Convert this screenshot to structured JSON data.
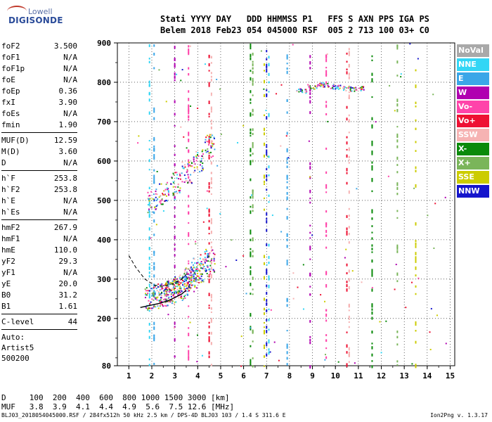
{
  "logo": {
    "line1": "Lowell",
    "line2": "DIGISONDE"
  },
  "header": {
    "row1": "Stati YYYY DAY   DDD HHMMSS P1   FFS S AXN PPS IGA PS",
    "row2": "Belem 2018 Feb23 054 045000 RSF  005 2 713 100 03+ C0"
  },
  "params": [
    {
      "name": "foF2",
      "value": "3.500"
    },
    {
      "name": "foF1",
      "value": "N/A"
    },
    {
      "name": "foF1p",
      "value": "N/A"
    },
    {
      "name": "foE",
      "value": "N/A"
    },
    {
      "name": "foEp",
      "value": "0.36"
    },
    {
      "name": "fxI",
      "value": "3.90"
    },
    {
      "name": "foEs",
      "value": "N/A"
    },
    {
      "name": "fmin",
      "value": "1.90"
    },
    {
      "sep": true
    },
    {
      "name": "MUF(D)",
      "value": "12.59"
    },
    {
      "name": "M(D)",
      "value": "3.60"
    },
    {
      "name": "D",
      "value": "N/A"
    },
    {
      "sep": true
    },
    {
      "name": "h`F",
      "value": "253.8"
    },
    {
      "name": "h`F2",
      "value": "253.8"
    },
    {
      "name": "h`E",
      "value": "N/A"
    },
    {
      "name": "h`Es",
      "value": "N/A"
    },
    {
      "sep": true
    },
    {
      "name": "hmF2",
      "value": "267.9"
    },
    {
      "name": "hmF1",
      "value": "N/A"
    },
    {
      "name": "hmE",
      "value": "110.0"
    },
    {
      "name": "yF2",
      "value": "29.3"
    },
    {
      "name": "yF1",
      "value": "N/A"
    },
    {
      "name": "yE",
      "value": "20.0"
    },
    {
      "name": "B0",
      "value": "31.2"
    },
    {
      "name": "B1",
      "value": "1.61"
    },
    {
      "sep": true
    },
    {
      "name": "C-level",
      "value": "44"
    },
    {
      "sep": true
    }
  ],
  "auto": [
    "Auto:",
    "Artist5",
    "500200"
  ],
  "legend": [
    {
      "label": "NoVal",
      "color": "#a9a9a9"
    },
    {
      "label": "NNE",
      "color": "#33d6f5"
    },
    {
      "label": "E",
      "color": "#3aa6e8"
    },
    {
      "label": "W",
      "color": "#b000b0"
    },
    {
      "label": "Vo-",
      "color": "#ff44aa"
    },
    {
      "label": "Vo+",
      "color": "#ee1133"
    },
    {
      "label": "SSW",
      "color": "#f6b3b3"
    },
    {
      "label": "X-",
      "color": "#0a8a0a"
    },
    {
      "label": "X+",
      "color": "#7ab55a"
    },
    {
      "label": "SSE",
      "color": "#cccc00"
    },
    {
      "label": "NNW",
      "color": "#1515cc"
    }
  ],
  "muf_table": {
    "row_d": "D     100  200  400  600  800 1000 1500 3000 [km]",
    "row_muf": "MUF   3.8  3.9  4.1  4.4  4.9  5.6  7.5 12.6 [MHz]"
  },
  "footer": "BLJ03_2018054045000.RSF / 284fx512h 50 kHz 2.5 km / DPS-4D BLJ03 103 / 1.4 S 311.6 E",
  "version": "Ion2Png v. 1.3.17",
  "chart_data": {
    "type": "scatter",
    "x_ticks": [
      1,
      2,
      3,
      4,
      5,
      6,
      7,
      8,
      9,
      10,
      11,
      12,
      13,
      14,
      15
    ],
    "y_ticks": [
      80,
      200,
      300,
      400,
      500,
      600,
      700,
      800,
      900
    ],
    "xlim": [
      0.5,
      15.2
    ],
    "ylim": [
      80,
      900
    ],
    "grid": true,
    "legend_position": "right",
    "trace_fit": {
      "name": "profile",
      "x": [
        1.5,
        1.9,
        2.3,
        2.7,
        3.0,
        3.3,
        3.5
      ],
      "y": [
        228,
        233,
        238,
        245,
        253,
        262,
        272
      ]
    },
    "trace_dashed": {
      "x": [
        1.0,
        1.3,
        1.7,
        2.1,
        2.5,
        2.9,
        3.3,
        3.6
      ],
      "y": [
        360,
        330,
        300,
        285,
        282,
        288,
        300,
        318
      ]
    },
    "echo_clusters": [
      {
        "name": "o-trace",
        "x": [
          1.9,
          2.2,
          2.5,
          2.8,
          3.1,
          3.4,
          3.7,
          4.0
        ],
        "y": [
          250,
          255,
          262,
          268,
          278,
          290,
          305,
          325
        ]
      },
      {
        "name": "x-trace",
        "x": [
          2.4,
          2.8,
          3.2,
          3.6,
          3.9,
          4.3,
          4.5
        ],
        "y": [
          260,
          270,
          280,
          300,
          315,
          335,
          350
        ]
      },
      {
        "name": "double-hop",
        "x": [
          2.0,
          2.5,
          3.0,
          3.5,
          4.0,
          4.5
        ],
        "y": [
          500,
          520,
          545,
          570,
          600,
          640
        ]
      },
      {
        "name": "E-band-spread",
        "x": [
          8.5,
          9.0,
          9.5,
          10.0,
          10.5,
          11.0
        ],
        "y": [
          780,
          790,
          795,
          790,
          785,
          785
        ]
      }
    ],
    "vertical_lines_x": [
      1.9,
      2.1,
      3.0,
      3.6,
      4.5,
      4.6,
      6.3,
      6.4,
      6.9,
      7.0,
      7.1,
      7.9,
      8.9,
      9.6,
      10.5,
      10.6,
      11.6,
      12.7,
      13.5
    ]
  }
}
